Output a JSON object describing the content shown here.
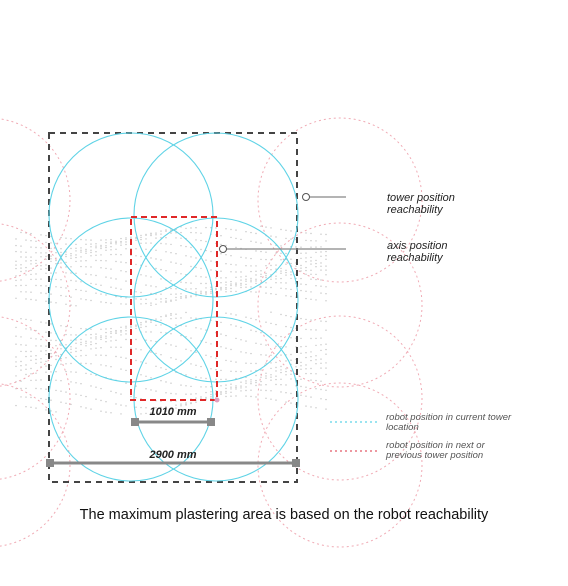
{
  "annotations": {
    "tower_reachability": [
      "tower position",
      "reachability"
    ],
    "axis_reachability": [
      "axis position",
      "reachability"
    ]
  },
  "legend": {
    "current": {
      "lines": [
        "robot position in current tower",
        "location"
      ],
      "color": "#5fd3e6"
    },
    "next": {
      "lines": [
        "robot position in next or",
        "previous tower position"
      ],
      "color": "#e25a68"
    }
  },
  "dimensions": {
    "inner": "1010 mm",
    "outer": "2900 mm"
  },
  "caption": "The maximum plastering area is based on the robot reachability",
  "colors": {
    "reach_circle": "#5fd3e6",
    "neighbor_circle": "#f0aab4",
    "plaster_area": "#e02828",
    "boundary": "#444444",
    "dimension": "#888888",
    "dots": "#c4c4c4"
  }
}
